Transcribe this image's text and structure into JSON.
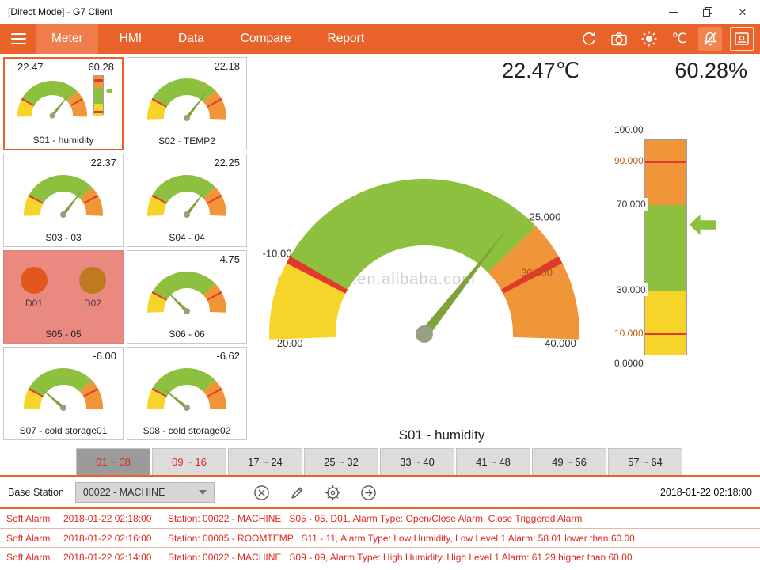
{
  "window": {
    "title": "[Direct Mode] - G7 Client",
    "controls": [
      "minimize-icon",
      "restore-icon",
      "close-icon"
    ]
  },
  "nav": {
    "menu_icon": "hamburger-icon",
    "tabs": [
      {
        "label": "Meter",
        "active": true
      },
      {
        "label": "HMI",
        "active": false
      },
      {
        "label": "Data",
        "active": false
      },
      {
        "label": "Compare",
        "active": false
      },
      {
        "label": "Report",
        "active": false
      }
    ],
    "right_icons": [
      "refresh-icon",
      "camera-icon",
      "brightness-icon",
      "celsius-icon",
      "alarm-mute-icon",
      "alarm-panel-icon"
    ],
    "celsius_label": "℃",
    "colors": {
      "bar": "#E8622A",
      "active_tab": "#EF7E4C"
    }
  },
  "scales": {
    "temp": {
      "min": -20,
      "max": 40,
      "segments": [
        {
          "from": -20,
          "to": -10,
          "color": "#F7D42A"
        },
        {
          "from": -10,
          "to": 25,
          "color": "#8DC03E"
        },
        {
          "from": 25,
          "to": 40,
          "color": "#F09538"
        }
      ],
      "ticks": [
        -10,
        30
      ],
      "tick_color": "#E03A2F",
      "needle_color": "#7FA33A",
      "hub_color": "#98A084",
      "labels": [
        {
          "at": -20,
          "text": "-20.00",
          "pos": "min"
        },
        {
          "at": -10,
          "text": "-10.00"
        },
        {
          "at": 25,
          "text": "25.000"
        },
        {
          "at": 30,
          "text": "30.000",
          "r": "mid",
          "color": "#BD4A1E"
        },
        {
          "at": 40,
          "text": "40.000",
          "pos": "max"
        }
      ]
    },
    "humidity": {
      "min": 0,
      "max": 100,
      "segments": [
        {
          "from": 0,
          "to": 30,
          "color": "#F7D42A"
        },
        {
          "from": 30,
          "to": 70,
          "color": "#8DC03E"
        },
        {
          "from": 70,
          "to": 100,
          "color": "#F09538"
        }
      ],
      "ticks": [
        10,
        90
      ],
      "tick_color": "#E03A2F",
      "pointer_color": "#8DC03E",
      "labels": [
        {
          "at": 100,
          "text": "100.00",
          "pos": "out"
        },
        {
          "at": 90,
          "text": "90.000",
          "color": "#C05A1A"
        },
        {
          "at": 70,
          "text": "70.000"
        },
        {
          "at": 30,
          "text": "30.000"
        },
        {
          "at": 10,
          "text": "10.000",
          "color": "#C05A1A"
        },
        {
          "at": 0,
          "text": "0.0000",
          "pos": "out"
        }
      ]
    }
  },
  "tiles": [
    {
      "label": "S01 - humidity",
      "value": "22.47",
      "value2": "60.28",
      "gauge_value": 22.47,
      "bar_value": 60.28,
      "selected": true
    },
    {
      "label": "S02 - TEMP2",
      "value": "22.18",
      "gauge_value": 22.18
    },
    {
      "label": "S03 - 03",
      "value": "22.37",
      "gauge_value": 22.37
    },
    {
      "label": "S04 - 04",
      "value": "22.25",
      "gauge_value": 22.25
    },
    {
      "label": "S05 - 05",
      "indicators": [
        {
          "label": "D01",
          "color": "#E4571C"
        },
        {
          "label": "D02",
          "color": "#BE7A1F"
        }
      ]
    },
    {
      "label": "S06 - 06",
      "value": "-4.75",
      "gauge_value": -4.75
    },
    {
      "label": "S07 - cold storage01",
      "value": "-6.00",
      "gauge_value": -6.0
    },
    {
      "label": "S08 - cold storage02",
      "value": "-6.62",
      "gauge_value": -6.62
    }
  ],
  "main": {
    "temp_reading": "22.47℃",
    "humidity_reading": "60.28%",
    "gauge_value": 22.47,
    "bar_value": 60.28,
    "caption": "S01 - humidity",
    "watermark": "easemind.en.alibaba.com"
  },
  "range_tabs": [
    {
      "label": "01 ~ 08",
      "active": true,
      "alert": true
    },
    {
      "label": "09 ~ 16",
      "active": false,
      "alert": true
    },
    {
      "label": "17 ~ 24",
      "active": false,
      "alert": false
    },
    {
      "label": "25 ~ 32",
      "active": false,
      "alert": false
    },
    {
      "label": "33 ~ 40",
      "active": false,
      "alert": false
    },
    {
      "label": "41 ~ 48",
      "active": false,
      "alert": false
    },
    {
      "label": "49 ~ 56",
      "active": false,
      "alert": false
    },
    {
      "label": "57 ~ 64",
      "active": false,
      "alert": false
    }
  ],
  "toolbar": {
    "base_station_label": "Base Station",
    "station_value": "00022 - MACHINE",
    "icons": [
      "cancel-icon",
      "edit-icon",
      "settings-icon",
      "go-icon"
    ],
    "timestamp": "2018-01-22 02:18:00"
  },
  "alarms": [
    {
      "type": "Soft Alarm",
      "time": "2018-01-22 02:18:00",
      "message": "Station: 00022 - MACHINE   S05 - 05, D01, Alarm Type: Open/Close Alarm, Close Triggered Alarm"
    },
    {
      "type": "Soft Alarm",
      "time": "2018-01-22 02:16:00",
      "message": "Station: 00005 - ROOMTEMP   S11 - 11, Alarm Type: Low Humidity, Low Level 1 Alarm: 58.01 lower than 60.00"
    },
    {
      "type": "Soft Alarm",
      "time": "2018-01-22 02:14:00",
      "message": "Station: 00022 - MACHINE   S09 - 09, Alarm Type: High Humidity, High Level 1 Alarm: 61.29 higher than 60.00"
    }
  ]
}
